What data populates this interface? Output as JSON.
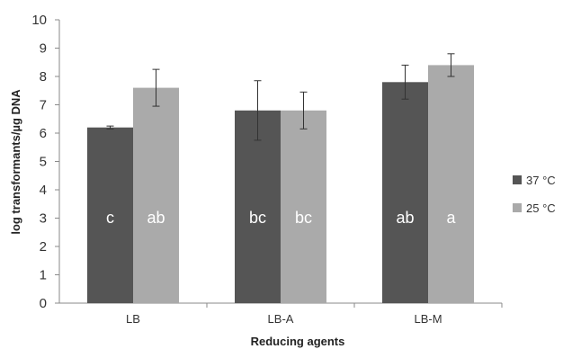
{
  "chart_data": {
    "type": "bar",
    "xlabel": "Reducing agents",
    "ylabel": "log transformants/µg DNA",
    "ylim": [
      0,
      10
    ],
    "yticks": [
      "0",
      "1",
      "2",
      "3",
      "4",
      "5",
      "6",
      "7",
      "8",
      "9",
      "10"
    ],
    "categories": [
      "LB",
      "LB-A",
      "LB-M"
    ],
    "grid": false,
    "legend_position": "right",
    "series": [
      {
        "name": "37 °C",
        "color": "#555555",
        "values": [
          6.2,
          6.8,
          7.8
        ],
        "errors": [
          0.05,
          1.05,
          0.6
        ],
        "letters": [
          "c",
          "bc",
          "ab"
        ]
      },
      {
        "name": "25 °C",
        "color": "#aaaaaa",
        "values": [
          7.6,
          6.8,
          8.4
        ],
        "errors": [
          0.65,
          0.65,
          0.4
        ],
        "letters": [
          "ab",
          "bc",
          "a"
        ]
      }
    ]
  }
}
